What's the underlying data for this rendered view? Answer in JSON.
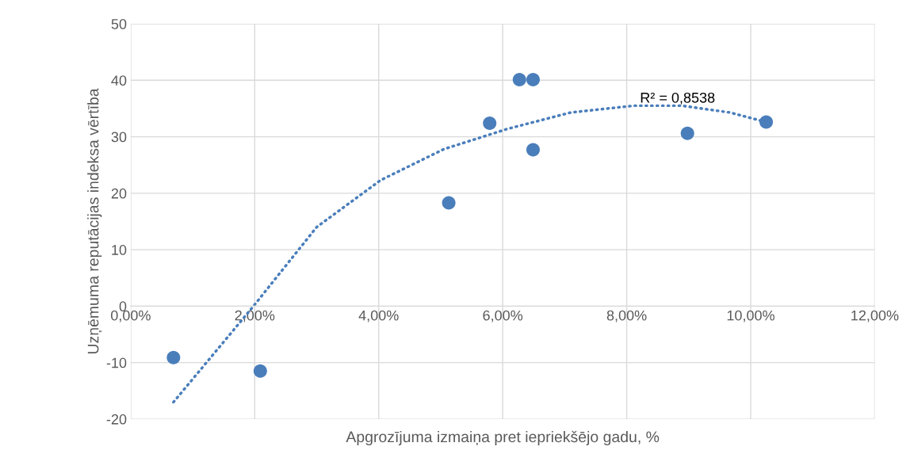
{
  "chart_data": {
    "type": "scatter",
    "xlabel": "Apgrozījuma izmaiņa pret iepriekšējo gadu, %",
    "ylabel": "Uzņēmuma reputācijas indeksa vērtība",
    "series": [
      {
        "color": "#4a7ebb",
        "marker": "circle",
        "x": [
          0.69,
          2.09,
          5.13,
          5.79,
          6.27,
          6.49,
          6.49,
          8.98,
          10.25
        ],
        "values": [
          -9.1,
          -11.5,
          18.3,
          32.4,
          40.1,
          40.1,
          27.7,
          30.6,
          32.6
        ]
      },
      {
        "type": "line",
        "color": "#4a7ebb",
        "line_style": "dotted",
        "marker": "none",
        "x": [
          0.69,
          1.98,
          3.0,
          4.03,
          5.05,
          6.08,
          7.1,
          8.12,
          8.89,
          9.66,
          10.25
        ],
        "values": [
          -17.0,
          0,
          14.0,
          22.3,
          27.8,
          31.4,
          34.3,
          35.5,
          35.5,
          34.3,
          32.6
        ]
      }
    ],
    "xlim": [
      0,
      12
    ],
    "xticks": [
      {
        "value": 0,
        "label": "0,00%"
      },
      {
        "value": 2,
        "label": "2,00%"
      },
      {
        "value": 4,
        "label": "4,00%"
      },
      {
        "value": 6,
        "label": "6,00%"
      },
      {
        "value": 8,
        "label": "8,00%"
      },
      {
        "value": 10,
        "label": "10,00%"
      },
      {
        "value": 12,
        "label": "12,00%"
      }
    ],
    "ylim": [
      -20,
      50
    ],
    "yticks": [
      -20,
      -10,
      0,
      10,
      20,
      30,
      40,
      50
    ],
    "grid": true,
    "legend": false,
    "annotations": [
      "R² = 0,8538"
    ]
  }
}
